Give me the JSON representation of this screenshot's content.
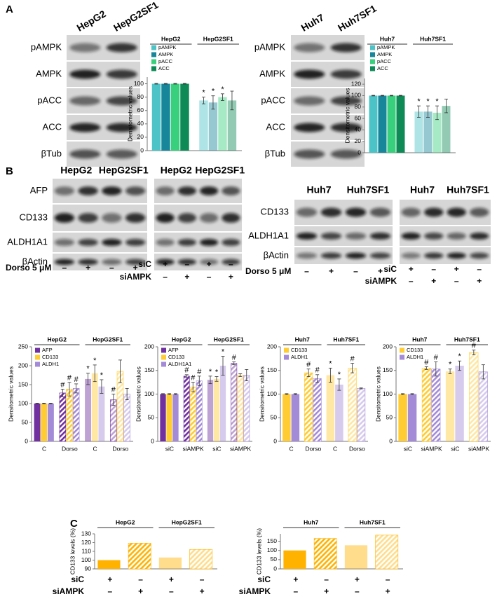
{
  "panels": [
    "A",
    "B",
    "C"
  ],
  "blots": [
    {
      "headers": [
        "HepG2",
        "HepG2SF1"
      ],
      "rows": [
        "pAMPK",
        "AMPK",
        "pACC",
        "ACC",
        "βTub"
      ]
    },
    {
      "headers": [
        "Huh7",
        "Huh7SF1"
      ],
      "rows": [
        "pAMPK",
        "AMPK",
        "pACC",
        "ACC",
        "βTub"
      ]
    },
    {
      "headers": [
        "HepG2",
        "HepG2SF1"
      ],
      "rows": [
        "AFP",
        "CD133",
        "ALDH1A1",
        "βActin"
      ],
      "treatments": [
        {
          "label": "Dorso 5 μM",
          "signs": [
            "–",
            "+",
            "–",
            "+"
          ]
        }
      ]
    },
    {
      "headers": [
        "HepG2",
        "HepG2SF1"
      ],
      "treatments": [
        {
          "label": "siC",
          "signs": [
            "+",
            "–",
            "+",
            "–"
          ]
        },
        {
          "label": "siAMPK",
          "signs": [
            "–",
            "+",
            "–",
            "+"
          ]
        }
      ]
    },
    {
      "headers": [
        "Huh7",
        "Huh7SF1"
      ],
      "rows": [
        "CD133",
        "ALDH1A1",
        "βActin"
      ],
      "treatments": [
        {
          "label": "Dorso 5 μM",
          "signs": [
            "–",
            "+",
            "–",
            "+"
          ]
        }
      ]
    },
    {
      "headers": [
        "Huh7",
        "Huh7SF1"
      ],
      "treatments": [
        {
          "label": "siC",
          "signs": [
            "+",
            "–",
            "+",
            "–"
          ]
        },
        {
          "label": "siAMPK",
          "signs": [
            "–",
            "+",
            "–",
            "+"
          ]
        }
      ]
    }
  ],
  "chart_data": [
    {
      "type": "bar",
      "y_label": "Densitometric values",
      "groups": [
        "HepG2",
        "HepG2SF1"
      ],
      "faded": [
        false,
        true
      ],
      "ylim": [
        0,
        110
      ],
      "yticks": [
        0,
        20,
        40,
        60,
        80,
        100
      ],
      "series": [
        {
          "name": "pAMPK",
          "color": "#4cc3c6",
          "values": [
            100,
            75
          ],
          "errors": [
            0.5,
            5
          ],
          "markers": [
            null,
            "*"
          ]
        },
        {
          "name": "AMPK",
          "color": "#17859a",
          "values": [
            100,
            72
          ],
          "errors": [
            0.5,
            10
          ],
          "markers": [
            null,
            "*"
          ]
        },
        {
          "name": "pACC",
          "color": "#38d07c",
          "values": [
            100,
            80
          ],
          "errors": [
            0.5,
            5
          ],
          "markers": [
            null,
            "*"
          ]
        },
        {
          "name": "ACC",
          "color": "#0e8a57",
          "values": [
            100,
            75
          ],
          "errors": [
            0.5,
            14
          ],
          "markers": [
            null,
            null
          ]
        }
      ]
    },
    {
      "type": "bar",
      "y_label": "Densitometric values",
      "groups": [
        "Huh7",
        "Huh7SF1"
      ],
      "faded": [
        false,
        true
      ],
      "ylim": [
        0,
        130
      ],
      "yticks": [
        0,
        20,
        40,
        60,
        80,
        100,
        120
      ],
      "series": [
        {
          "name": "pAMPK",
          "color": "#4cc3c6",
          "values": [
            100,
            72
          ],
          "errors": [
            0.5,
            10
          ],
          "markers": [
            null,
            "*"
          ]
        },
        {
          "name": "AMPK",
          "color": "#17859a",
          "values": [
            100,
            72
          ],
          "errors": [
            0.5,
            10
          ],
          "markers": [
            null,
            "*"
          ]
        },
        {
          "name": "pACC",
          "color": "#38d07c",
          "values": [
            100,
            70
          ],
          "errors": [
            0.5,
            12
          ],
          "markers": [
            null,
            "*"
          ]
        },
        {
          "name": "ACC",
          "color": "#0e8a57",
          "values": [
            100,
            82
          ],
          "errors": [
            0.5,
            12
          ],
          "markers": [
            null,
            null
          ]
        }
      ]
    },
    {
      "type": "bar",
      "y_label": "Densitometric values",
      "groups": [
        "HepG2",
        "HepG2SF1"
      ],
      "categories": [
        "C",
        "Dorso",
        "C",
        "Dorso"
      ],
      "hatched": [
        false,
        true,
        false,
        true
      ],
      "faded": [
        false,
        false,
        true,
        true
      ],
      "ylim": [
        0,
        250
      ],
      "yticks": [
        0,
        50,
        100,
        150,
        200,
        250
      ],
      "series": [
        {
          "name": "AFP",
          "color": "#7030a0",
          "values": [
            100,
            128,
            165,
            110
          ],
          "errors": [
            1,
            10,
            15,
            15
          ],
          "markers": [
            null,
            "#",
            "*",
            "#"
          ]
        },
        {
          "name": "CD133",
          "color": "#ffcc33",
          "values": [
            100,
            138,
            180,
            185
          ],
          "errors": [
            1,
            18,
            22,
            30
          ],
          "markers": [
            null,
            "#",
            "*",
            null
          ]
        },
        {
          "name": "ALDH1",
          "color": "#a48bd8",
          "values": [
            100,
            140,
            145,
            125
          ],
          "errors": [
            1,
            12,
            18,
            15
          ],
          "markers": [
            null,
            "#",
            "*",
            null
          ]
        }
      ]
    },
    {
      "type": "bar",
      "y_label": "Densitometric values",
      "groups": [
        "HepG2",
        "HepG2SF1"
      ],
      "categories": [
        "siC",
        "siAMPK",
        "siC",
        "siAMPK"
      ],
      "hatched": [
        false,
        true,
        false,
        true
      ],
      "faded": [
        false,
        false,
        true,
        true
      ],
      "ylim": [
        0,
        200
      ],
      "yticks": [
        0,
        50,
        100,
        150,
        200
      ],
      "series": [
        {
          "name": "AFP",
          "color": "#7030a0",
          "values": [
            100,
            138,
            130,
            165
          ],
          "errors": [
            1,
            3,
            8,
            3
          ],
          "markers": [
            null,
            "#",
            "*",
            "#"
          ]
        },
        {
          "name": "CD133",
          "color": "#ffcc33",
          "values": [
            100,
            115,
            132,
            140
          ],
          "errors": [
            1,
            10,
            5,
            3
          ],
          "markers": [
            null,
            "#",
            "*",
            null
          ]
        },
        {
          "name": "ALDH1A1",
          "color": "#a48bd8",
          "values": [
            100,
            128,
            160,
            140
          ],
          "errors": [
            1,
            10,
            20,
            12
          ],
          "markers": [
            null,
            "#",
            "*",
            null
          ]
        }
      ]
    },
    {
      "type": "bar",
      "y_label": "Densitometric values",
      "groups": [
        "Huh7",
        "Huh7SF1"
      ],
      "categories": [
        "C",
        "Dorso",
        "C",
        "Dorso"
      ],
      "hatched": [
        false,
        true,
        false,
        true
      ],
      "faded": [
        false,
        false,
        true,
        true
      ],
      "ylim": [
        0,
        200
      ],
      "yticks": [
        0,
        50,
        100,
        150,
        200
      ],
      "series": [
        {
          "name": "CD133",
          "color": "#ffcc33",
          "values": [
            100,
            145,
            140,
            155
          ],
          "errors": [
            1,
            8,
            15,
            10
          ],
          "markers": [
            null,
            "#",
            "*",
            "#"
          ]
        },
        {
          "name": "ALDH1",
          "color": "#a48bd8",
          "values": [
            100,
            133,
            120,
            112
          ],
          "errors": [
            1,
            8,
            12,
            1
          ],
          "markers": [
            null,
            "#",
            "*",
            null
          ]
        }
      ]
    },
    {
      "type": "bar",
      "y_label": "Densitometric values",
      "groups": [
        "Huh7",
        "Huh7SF1"
      ],
      "categories": [
        "siC",
        "siAMPK",
        "siC",
        "siAMPK"
      ],
      "hatched": [
        false,
        true,
        false,
        true
      ],
      "faded": [
        false,
        false,
        true,
        true
      ],
      "ylim": [
        0,
        200
      ],
      "yticks": [
        0,
        50,
        100,
        150,
        200
      ],
      "series": [
        {
          "name": "CD133",
          "color": "#ffcc33",
          "values": [
            100,
            155,
            148,
            188
          ],
          "errors": [
            1,
            3,
            5,
            5
          ],
          "markers": [
            null,
            "#",
            "*",
            "#"
          ]
        },
        {
          "name": "ALDH1",
          "color": "#a48bd8",
          "values": [
            100,
            153,
            160,
            147
          ],
          "errors": [
            1,
            15,
            10,
            15
          ],
          "markers": [
            null,
            "#",
            "*",
            null
          ]
        }
      ]
    },
    {
      "type": "bar",
      "y_label": "CD133  levels (%)",
      "groups": [
        "HepG2",
        "HepG2SF1"
      ],
      "color": "#ffb300",
      "values": [
        100,
        119.3,
        103,
        112.2
      ],
      "hatched": [
        false,
        true,
        false,
        true
      ],
      "faded": [
        false,
        false,
        true,
        true
      ],
      "ylim": [
        90,
        130
      ],
      "yticks": [
        90,
        100,
        110,
        120,
        130
      ],
      "treatments": [
        {
          "label": "siC",
          "signs": [
            "+",
            "–",
            "+",
            "–"
          ]
        },
        {
          "label": "siAMPK",
          "signs": [
            "–",
            "+",
            "–",
            "+"
          ]
        }
      ]
    },
    {
      "type": "bar",
      "y_label": "CD133  levels (%)",
      "groups": [
        "Huh7",
        "Huh7SF1"
      ],
      "color": "#ffb300",
      "values": [
        100,
        165,
        128,
        183
      ],
      "hatched": [
        false,
        true,
        false,
        true
      ],
      "faded": [
        false,
        false,
        true,
        true
      ],
      "ylim": [
        0,
        190
      ],
      "yticks": [
        0,
        50,
        100,
        150
      ],
      "treatments": [
        {
          "label": "siC",
          "signs": [
            "+",
            "–",
            "+",
            "–"
          ]
        },
        {
          "label": "siAMPK",
          "signs": [
            "–",
            "+",
            "–",
            "+"
          ]
        }
      ]
    }
  ]
}
